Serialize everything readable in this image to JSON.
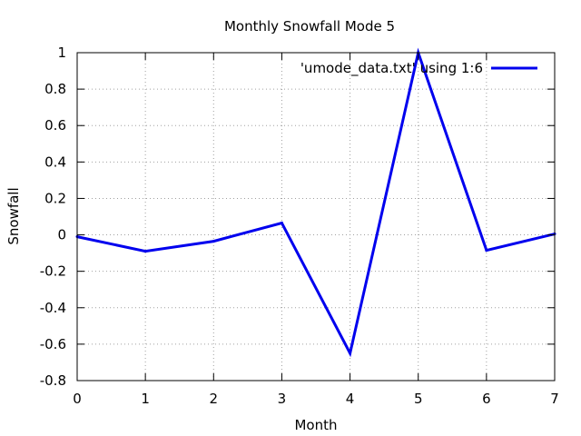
{
  "chart_data": {
    "type": "line",
    "title": "Monthly Snowfall Mode 5",
    "xlabel": "Month",
    "ylabel": "Snowfall",
    "xlim": [
      0,
      7
    ],
    "ylim": [
      -0.8,
      1
    ],
    "x_ticks": [
      0,
      1,
      2,
      3,
      4,
      5,
      6,
      7
    ],
    "y_ticks": [
      -0.8,
      -0.6,
      -0.4,
      -0.2,
      0,
      0.2,
      0.4,
      0.6,
      0.8,
      1
    ],
    "x_tick_labels": [
      "0",
      "1",
      "2",
      "3",
      "4",
      "5",
      "6",
      "7"
    ],
    "y_tick_labels": [
      "-0.8",
      "-0.6",
      "-0.4",
      "-0.2",
      "0",
      "0.2",
      "0.4",
      "0.6",
      "0.8",
      "1"
    ],
    "grid": true,
    "legend_position": "top-right",
    "series": [
      {
        "name": "'umode_data.txt' using 1:6",
        "color": "#0000ee",
        "x": [
          0,
          1,
          2,
          3,
          4,
          5,
          6,
          7
        ],
        "y": [
          -0.01,
          -0.09,
          -0.035,
          0.065,
          -0.65,
          1.0,
          -0.085,
          0.005
        ]
      }
    ]
  }
}
